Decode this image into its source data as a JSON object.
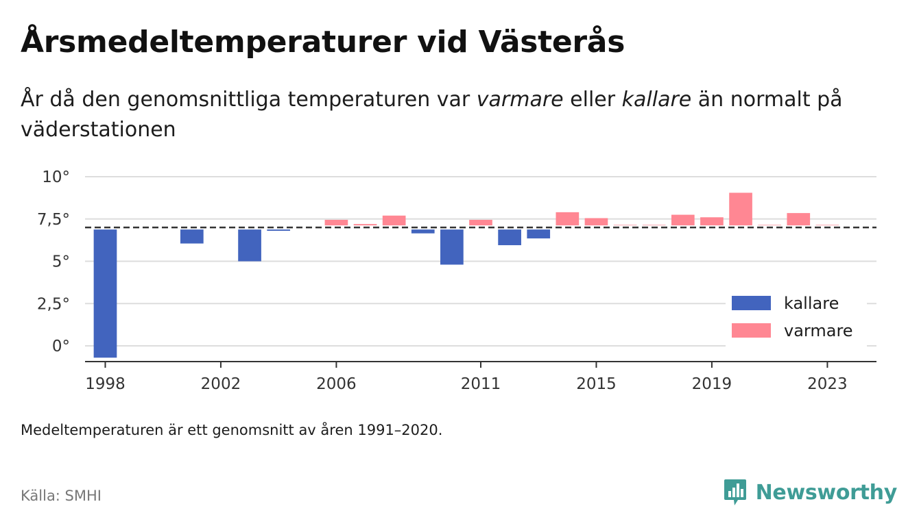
{
  "header": {
    "title": "Årsmedeltemperaturer vid Västerås",
    "subtitle_parts": [
      "År då den genomsnittliga temperaturen var ",
      "varmare",
      " eller ",
      "kallare",
      " än normalt på väderstationen"
    ]
  },
  "footer": {
    "note": "Medeltemperaturen är ett genomsnitt av åren 1991–2020.",
    "source": "Källa: SMHI",
    "brand": "Newsworthy"
  },
  "colors": {
    "kallare": "#4264be",
    "varmare": "#ff8793",
    "baseline": "#333333",
    "grid": "#dddddd",
    "brand": "#3f9c96"
  },
  "chart_data": {
    "type": "bar",
    "ylim": [
      -0.8,
      10
    ],
    "yticks": [
      0,
      2.5,
      5,
      7.5,
      10
    ],
    "ytick_labels": [
      "0°",
      "2,5°",
      "5°",
      "7,5°",
      "10°"
    ],
    "xlim": [
      1997.3,
      2024.7
    ],
    "xticks": [
      1998,
      2002,
      2006,
      2011,
      2015,
      2019,
      2023
    ],
    "xtick_labels": [
      "1998",
      "2002",
      "2006",
      "2011",
      "2015",
      "2019",
      "2023"
    ],
    "normal": 7.0,
    "grid": true,
    "legend_position": "bottom-right",
    "legend": [
      {
        "key": "kallare",
        "label": "kallare"
      },
      {
        "key": "varmare",
        "label": "varmare"
      }
    ],
    "years": [
      1998,
      1999,
      2000,
      2001,
      2002,
      2003,
      2004,
      2005,
      2006,
      2007,
      2008,
      2009,
      2010,
      2011,
      2012,
      2013,
      2014,
      2015,
      2016,
      2017,
      2018,
      2019,
      2020,
      2021,
      2022,
      2023
    ],
    "values": [
      -0.7,
      7.1,
      null,
      6.05,
      null,
      5.0,
      6.8,
      null,
      7.45,
      7.2,
      7.7,
      6.65,
      4.8,
      7.45,
      5.95,
      6.35,
      7.9,
      7.55,
      7.15,
      7.15,
      7.75,
      7.6,
      9.05,
      7.15,
      7.85,
      7.15
    ]
  }
}
